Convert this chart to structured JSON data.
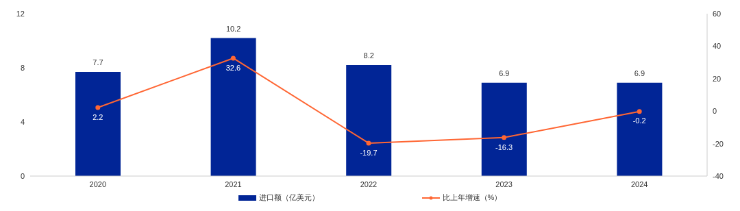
{
  "chart_data": {
    "type": "bar",
    "categories": [
      "2020",
      "2021",
      "2022",
      "2023",
      "2024"
    ],
    "series": [
      {
        "name": "进口额（亿美元）",
        "color": "#012596",
        "values": [
          7.7,
          10.2,
          8.2,
          6.9,
          6.9
        ]
      },
      {
        "name": "比上年增速（%）",
        "type": "line",
        "axis": "y2",
        "color": "#ff6633",
        "values": [
          2.2,
          32.6,
          -19.7,
          -16.3,
          -0.2
        ]
      }
    ],
    "ylim": [
      0,
      12
    ],
    "yticks": [
      0,
      4,
      8,
      12
    ],
    "y2lim": [
      -40,
      60
    ],
    "y2ticks": [
      -40,
      -20,
      0,
      20,
      40,
      60
    ],
    "legend": "bottom",
    "marker": "circle",
    "line_style": "solid",
    "data_labels": true
  }
}
